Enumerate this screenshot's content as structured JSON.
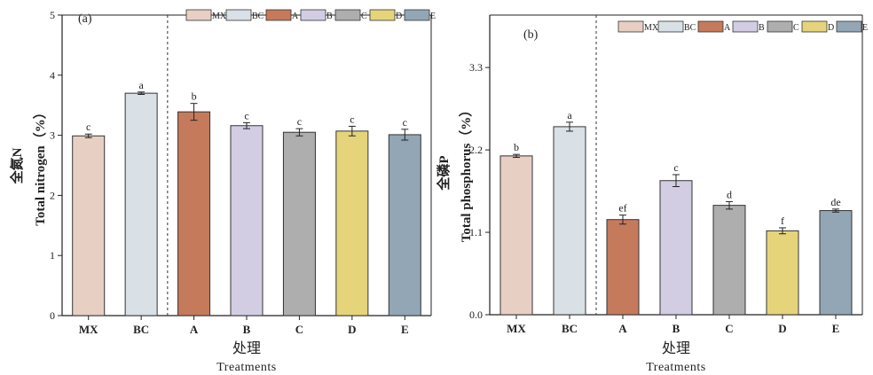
{
  "chart_data": [
    {
      "type": "bar",
      "panel_label": "(a)",
      "categories": [
        "MX",
        "BC",
        "A",
        "B",
        "C",
        "D",
        "E"
      ],
      "values": [
        2.99,
        3.7,
        3.39,
        3.16,
        3.05,
        3.07,
        3.01
      ],
      "errors": [
        0.03,
        0.02,
        0.14,
        0.05,
        0.06,
        0.08,
        0.09
      ],
      "significance": [
        "c",
        "a",
        "b",
        "c",
        "c",
        "c",
        "c"
      ],
      "ylabel_cn": "全氮N",
      "ylabel_en": "Total nitrogen（%）",
      "xlabel_cn": "处理",
      "xlabel_en": "Treatments",
      "ylim": [
        0,
        5
      ],
      "yticks": [
        "0",
        "1",
        "2",
        "3",
        "4",
        "5"
      ],
      "legend": [
        "MX",
        "BC",
        "A",
        "B",
        "C",
        "D",
        "E"
      ],
      "legend_position": "top"
    },
    {
      "type": "bar",
      "panel_label": "(b)",
      "categories": [
        "MX",
        "BC",
        "A",
        "B",
        "C",
        "D",
        "E"
      ],
      "values": [
        2.12,
        2.51,
        1.27,
        1.79,
        1.46,
        1.12,
        1.39
      ],
      "errors": [
        0.02,
        0.06,
        0.06,
        0.08,
        0.05,
        0.04,
        0.02
      ],
      "significance": [
        "b",
        "a",
        "ef",
        "c",
        "d",
        "f",
        "de"
      ],
      "ylabel_cn": "全磷P",
      "ylabel_en": "Total phosphorus（%）",
      "xlabel_cn": "处理",
      "xlabel_en": "Treatments",
      "ylim": [
        0,
        4.0
      ],
      "yticks": [
        "0.0",
        "1.1",
        "2.2",
        "3.3"
      ],
      "yticks_values": [
        0,
        1.1,
        2.2,
        3.3
      ],
      "legend": [
        "MX",
        "BC",
        "A",
        "B",
        "C",
        "D",
        "E"
      ],
      "legend_position": "top"
    }
  ],
  "colors": {
    "MX": "#e8cfc4",
    "BC": "#d9e0e6",
    "A": "#c57a5c",
    "B": "#d2cde3",
    "C": "#aeaeae",
    "D": "#e6d47a",
    "E": "#93a6b5"
  }
}
